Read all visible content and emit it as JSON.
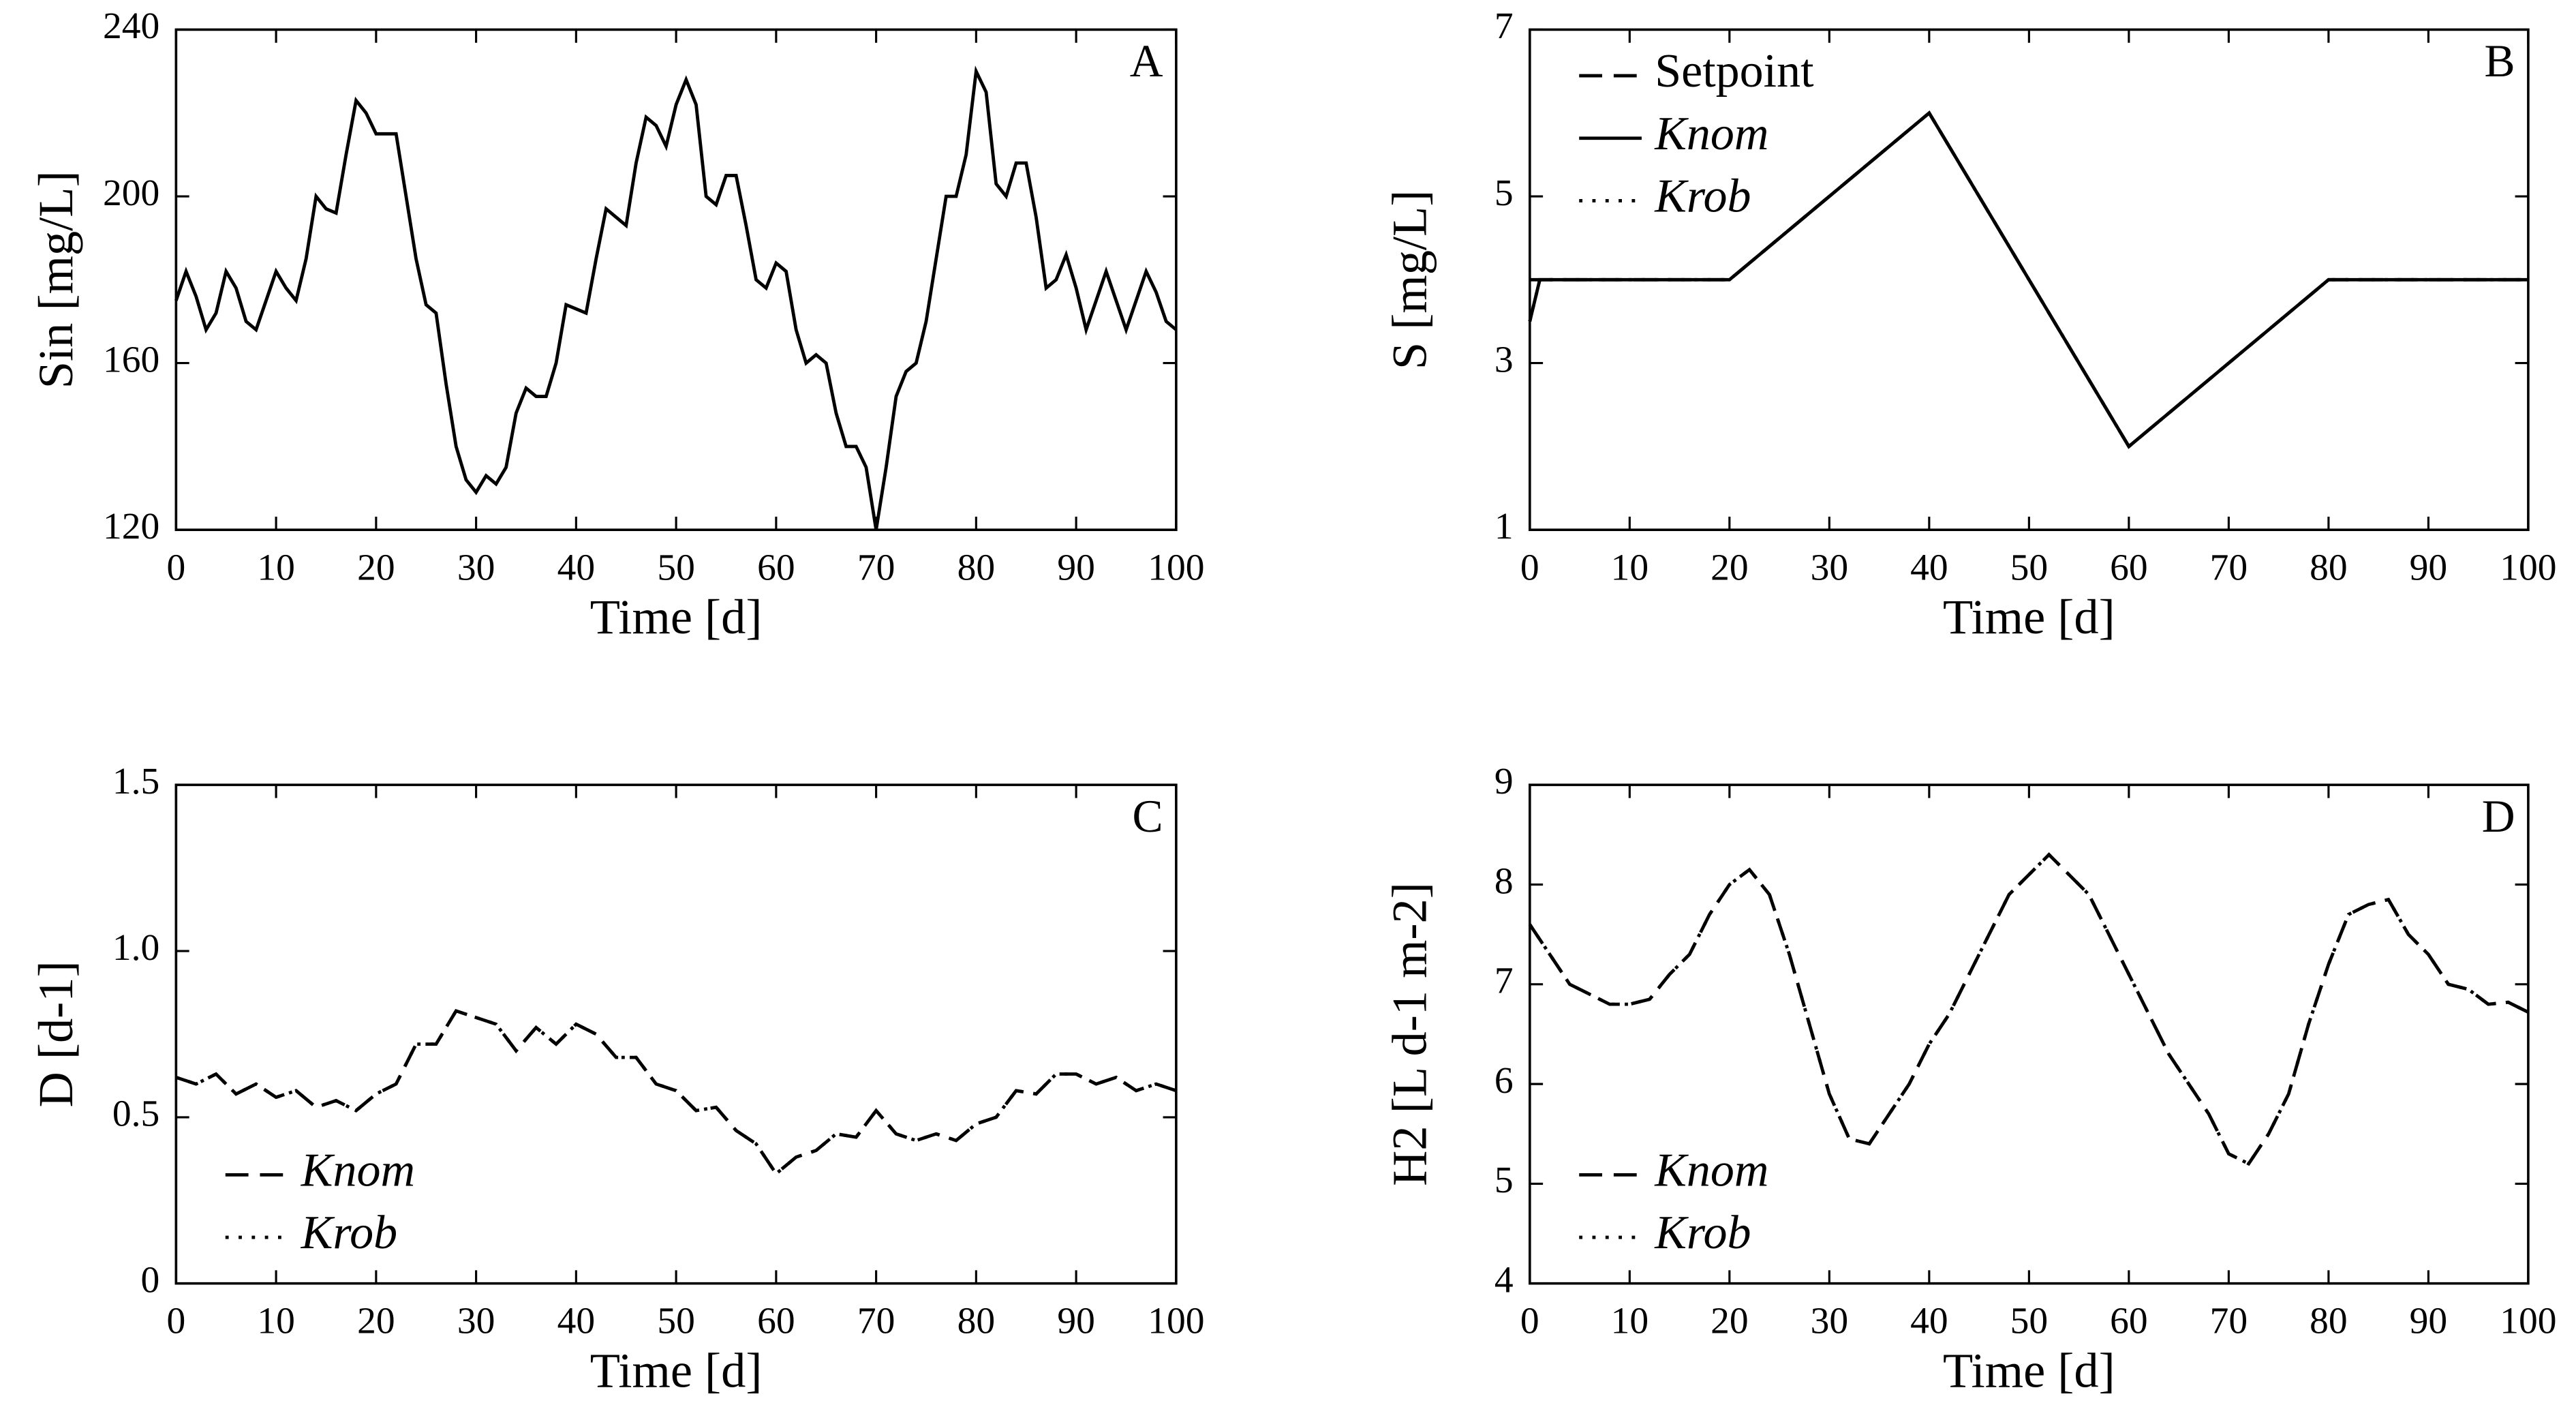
{
  "chart_data": [
    {
      "type": "line",
      "label": "A",
      "x_label": "Time [d]",
      "y_label": "Sin [mg/L]",
      "xlim": [
        0,
        100
      ],
      "xticks": [
        0,
        10,
        20,
        30,
        40,
        50,
        60,
        70,
        80,
        90,
        100
      ],
      "ylim": [
        120,
        240
      ],
      "yticks": [
        120,
        160,
        200,
        240
      ],
      "x": [
        0,
        1,
        2,
        3,
        4,
        5,
        6,
        7,
        8,
        9,
        10,
        11,
        12,
        13,
        14,
        15,
        16,
        17,
        18,
        19,
        20,
        21,
        22,
        23,
        24,
        25,
        26,
        27,
        28,
        29,
        30,
        31,
        32,
        33,
        34,
        35,
        36,
        37,
        38,
        39,
        40,
        41,
        42,
        43,
        44,
        45,
        46,
        47,
        48,
        49,
        50,
        51,
        52,
        53,
        54,
        55,
        56,
        57,
        58,
        59,
        60,
        61,
        62,
        63,
        64,
        65,
        66,
        67,
        68,
        69,
        70,
        71,
        72,
        73,
        74,
        75,
        76,
        77,
        78,
        79,
        80,
        81,
        82,
        83,
        84,
        85,
        86,
        87,
        88,
        89,
        90,
        91,
        92,
        93,
        94,
        95,
        96,
        97,
        98,
        99,
        100
      ],
      "series": [
        {
          "color": "#000000",
          "style": "solid",
          "values": [
            175,
            182,
            176,
            168,
            172,
            182,
            178,
            170,
            168,
            175,
            182,
            178,
            175,
            185,
            200,
            197,
            196,
            210,
            223,
            220,
            215,
            215,
            215,
            200,
            185,
            174,
            172,
            155,
            140,
            132,
            129,
            133,
            131,
            135,
            148,
            154,
            152,
            152,
            160,
            174,
            173,
            172,
            185,
            197,
            195,
            193,
            208,
            219,
            217,
            212,
            222,
            228,
            222,
            200,
            198,
            205,
            205,
            193,
            180,
            178,
            184,
            182,
            168,
            160,
            162,
            160,
            148,
            140,
            140,
            135,
            120,
            135,
            152,
            158,
            160,
            170,
            185,
            200,
            200,
            210,
            230,
            225,
            203,
            200,
            208,
            208,
            195,
            178,
            180,
            186,
            178,
            168,
            175,
            182,
            175,
            168,
            175,
            182,
            177,
            170,
            168
          ]
        }
      ]
    },
    {
      "type": "line",
      "label": "B",
      "x_label": "Time [d]",
      "y_label": "S [mg/L]",
      "xlim": [
        0,
        100
      ],
      "xticks": [
        0,
        10,
        20,
        30,
        40,
        50,
        60,
        70,
        80,
        90,
        100
      ],
      "ylim": [
        1,
        7
      ],
      "yticks": [
        1,
        3,
        5,
        7
      ],
      "legend": "upper left",
      "x": [
        0,
        1,
        20,
        40,
        60,
        80,
        100
      ],
      "series": [
        {
          "name": "Setpoint",
          "color": "#000000",
          "style": "dashed",
          "values": [
            4,
            4,
            4,
            6,
            2,
            4,
            4
          ]
        },
        {
          "name": "Knom",
          "color": "#000000",
          "style": "solid",
          "values": [
            3.5,
            4,
            4,
            6,
            2,
            4,
            4
          ]
        },
        {
          "name": "Krob",
          "color": "#000000",
          "style": "dotted",
          "values": [
            3.5,
            4,
            4,
            6,
            2,
            4,
            4
          ]
        }
      ]
    },
    {
      "type": "line",
      "label": "C",
      "x_label": "Time [d]",
      "y_label": "D [d-1]",
      "xlim": [
        0,
        100
      ],
      "xticks": [
        0,
        10,
        20,
        30,
        40,
        50,
        60,
        70,
        80,
        90,
        100
      ],
      "ylim": [
        0,
        1.5
      ],
      "yticks": [
        0,
        0.5,
        {
          "value": 1.0,
          "label": "1.0"
        },
        1.5
      ],
      "legend": "lower left",
      "x": [
        0,
        2,
        4,
        6,
        8,
        10,
        12,
        14,
        16,
        18,
        20,
        22,
        24,
        26,
        28,
        30,
        32,
        34,
        36,
        38,
        40,
        42,
        44,
        46,
        48,
        50,
        52,
        54,
        56,
        58,
        60,
        62,
        64,
        66,
        68,
        70,
        72,
        74,
        76,
        78,
        80,
        82,
        84,
        86,
        88,
        90,
        92,
        94,
        96,
        98,
        100
      ],
      "series": [
        {
          "name": "Knom",
          "color": "#000000",
          "style": "dashed",
          "values": [
            0.62,
            0.6,
            0.63,
            0.57,
            0.6,
            0.56,
            0.58,
            0.53,
            0.55,
            0.52,
            0.57,
            0.6,
            0.72,
            0.72,
            0.82,
            0.8,
            0.78,
            0.7,
            0.77,
            0.72,
            0.78,
            0.75,
            0.68,
            0.68,
            0.6,
            0.58,
            0.52,
            0.53,
            0.46,
            0.42,
            0.33,
            0.38,
            0.4,
            0.45,
            0.44,
            0.52,
            0.45,
            0.43,
            0.45,
            0.43,
            0.48,
            0.5,
            0.58,
            0.57,
            0.63,
            0.63,
            0.6,
            0.62,
            0.58,
            0.6,
            0.58
          ]
        },
        {
          "name": "Krob",
          "color": "#000000",
          "style": "dotted",
          "values": [
            0.62,
            0.6,
            0.63,
            0.57,
            0.6,
            0.56,
            0.58,
            0.53,
            0.55,
            0.52,
            0.57,
            0.6,
            0.72,
            0.72,
            0.82,
            0.8,
            0.78,
            0.7,
            0.77,
            0.72,
            0.78,
            0.75,
            0.68,
            0.68,
            0.6,
            0.58,
            0.52,
            0.53,
            0.46,
            0.42,
            0.33,
            0.38,
            0.4,
            0.45,
            0.44,
            0.52,
            0.45,
            0.43,
            0.45,
            0.43,
            0.48,
            0.5,
            0.58,
            0.57,
            0.63,
            0.63,
            0.6,
            0.62,
            0.58,
            0.6,
            0.58
          ]
        }
      ]
    },
    {
      "type": "line",
      "label": "D",
      "x_label": "Time [d]",
      "y_label": "H2 [L d-1 m-2]",
      "xlim": [
        0,
        100
      ],
      "xticks": [
        0,
        10,
        20,
        30,
        40,
        50,
        60,
        70,
        80,
        90,
        100
      ],
      "ylim": [
        4,
        9
      ],
      "yticks": [
        4,
        5,
        6,
        7,
        8,
        9
      ],
      "legend": "lower left",
      "x": [
        0,
        2,
        4,
        6,
        8,
        10,
        12,
        14,
        16,
        18,
        20,
        22,
        24,
        26,
        28,
        30,
        32,
        34,
        36,
        38,
        40,
        42,
        44,
        46,
        48,
        50,
        52,
        54,
        56,
        58,
        60,
        62,
        64,
        66,
        68,
        70,
        72,
        74,
        76,
        78,
        80,
        82,
        84,
        86,
        88,
        90,
        92,
        94,
        96,
        98,
        100
      ],
      "series": [
        {
          "name": "Knom",
          "color": "#000000",
          "style": "dashed",
          "values": [
            7.6,
            7.3,
            7.0,
            6.9,
            6.8,
            6.8,
            6.85,
            7.1,
            7.3,
            7.7,
            8.0,
            8.15,
            7.9,
            7.3,
            6.6,
            5.9,
            5.45,
            5.4,
            5.7,
            6.0,
            6.4,
            6.7,
            7.1,
            7.5,
            7.9,
            8.1,
            8.3,
            8.1,
            7.9,
            7.5,
            7.1,
            6.7,
            6.3,
            6.0,
            5.7,
            5.3,
            5.2,
            5.5,
            5.9,
            6.6,
            7.2,
            7.7,
            7.8,
            7.85,
            7.5,
            7.3,
            7.0,
            6.95,
            6.8,
            6.82,
            6.72
          ]
        },
        {
          "name": "Krob",
          "color": "#000000",
          "style": "dotted",
          "values": [
            7.6,
            7.3,
            7.0,
            6.9,
            6.8,
            6.8,
            6.85,
            7.1,
            7.3,
            7.7,
            8.0,
            8.15,
            7.9,
            7.3,
            6.6,
            5.9,
            5.45,
            5.4,
            5.7,
            6.0,
            6.4,
            6.7,
            7.1,
            7.5,
            7.9,
            8.1,
            8.3,
            8.1,
            7.9,
            7.5,
            7.1,
            6.7,
            6.3,
            6.0,
            5.7,
            5.3,
            5.2,
            5.5,
            5.9,
            6.6,
            7.2,
            7.7,
            7.8,
            7.85,
            7.5,
            7.3,
            7.0,
            6.95,
            6.8,
            6.82,
            6.72
          ]
        }
      ]
    }
  ]
}
